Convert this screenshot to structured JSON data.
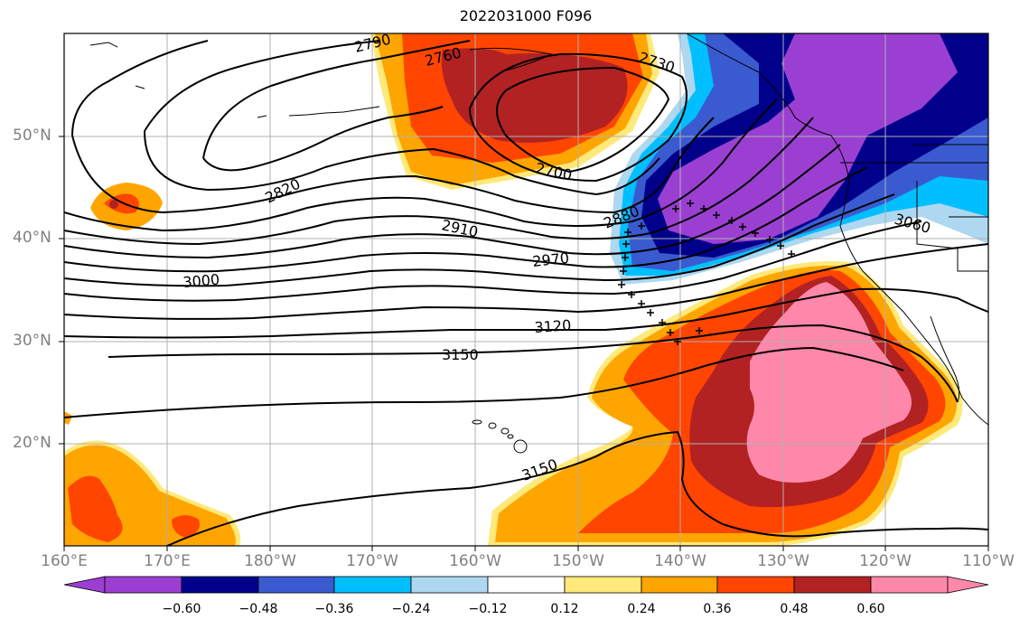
{
  "title": "2022031000 F096",
  "lat_labels": [
    "50°N",
    "40°N",
    "30°N",
    "20°N"
  ],
  "lon_labels": [
    "160°E",
    "170°E",
    "180°W",
    "170°W",
    "160°W",
    "150°W",
    "140°W",
    "130°W",
    "120°W",
    "110°W"
  ],
  "colorbar": {
    "ticks": [
      "−0.60",
      "−0.48",
      "−0.36",
      "−0.24",
      "−0.12",
      "0.12",
      "0.24",
      "0.36",
      "0.48",
      "0.60"
    ],
    "colors": [
      "#9b3fd2",
      "#00008b",
      "#3a5bd0",
      "#00bfff",
      "#add8f0",
      "#ffffff",
      "#ffe97a",
      "#ffa500",
      "#ff4500",
      "#b22222",
      "#ff88aa"
    ]
  },
  "contours": {
    "labels": [
      "2790",
      "2760",
      "2730",
      "2700",
      "2820",
      "2910",
      "2880",
      "2970",
      "3000",
      "3060",
      "3120",
      "3150",
      "3150"
    ]
  }
}
